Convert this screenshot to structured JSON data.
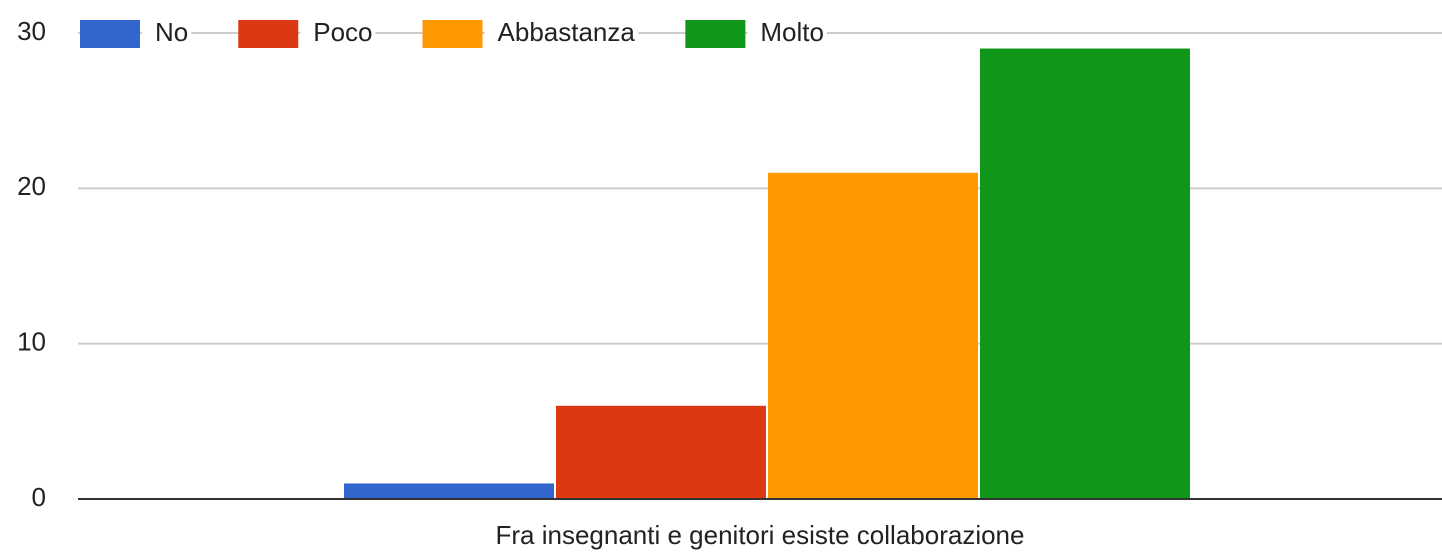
{
  "chart_data": {
    "type": "bar",
    "xlabel": "Fra insegnanti e genitori esiste collaborazione",
    "series": [
      {
        "name": "No",
        "color": "#3366cc",
        "values": [
          1
        ]
      },
      {
        "name": "Poco",
        "color": "#dc3912",
        "values": [
          6
        ]
      },
      {
        "name": "Abbastanza",
        "color": "#ff9900",
        "values": [
          21
        ]
      },
      {
        "name": "Molto",
        "color": "#109618",
        "values": [
          29
        ]
      }
    ],
    "ylim": [
      0,
      30
    ],
    "yticks": [
      0,
      10,
      20,
      30
    ],
    "grid": true,
    "legend": "top"
  }
}
